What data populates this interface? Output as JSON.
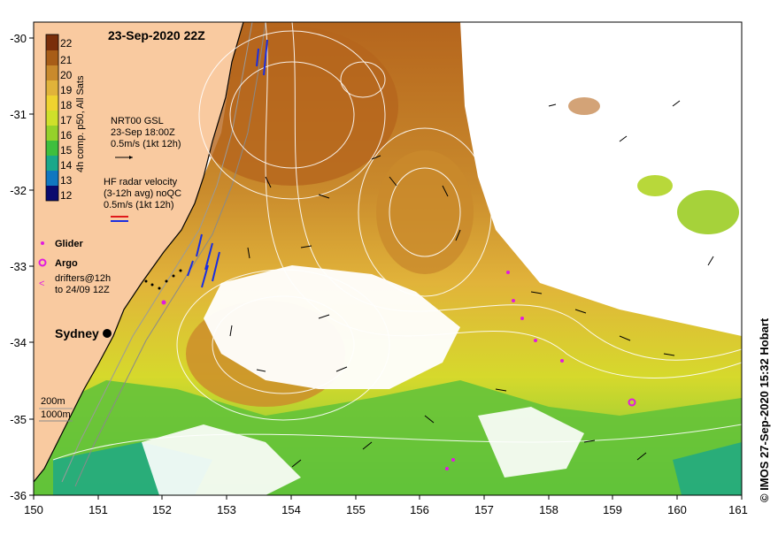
{
  "title": "23-Sep-2020 22Z",
  "credit": "© IMOS 27-Sep-2020 15:32 Hobart",
  "colorbar": {
    "label": "4h comp. p50, All Sats",
    "ticks": [
      "22",
      "21",
      "20",
      "19",
      "18",
      "17",
      "16",
      "15",
      "14",
      "13",
      "12"
    ],
    "colors": [
      "#7a2e0a",
      "#a85d17",
      "#c98a2c",
      "#e1b33a",
      "#efd32f",
      "#cfe02a",
      "#95d12a",
      "#3fbf3e",
      "#1aa88a",
      "#1177c0",
      "#0e3a9a",
      "#0a0a6e"
    ]
  },
  "legend": {
    "gsl_title": "NRT00 GSL",
    "gsl_time": "23-Sep 18:00Z",
    "gsl_scale": "0.5m/s (1kt 12h)",
    "hf_title": "HF radar velocity",
    "hf_sub": "(3-12h avg) noQC",
    "hf_scale": "0.5m/s (1kt 12h)",
    "glider": "Glider",
    "argo": "Argo",
    "drifters_1": "drifters@12h",
    "drifters_2": "to 24/09 12Z",
    "contour_200": "200m",
    "contour_1000": "1000m",
    "city": "Sydney"
  },
  "axes": {
    "x_ticks": [
      "150",
      "151",
      "152",
      "153",
      "154",
      "155",
      "156",
      "157",
      "158",
      "159",
      "160",
      "161"
    ],
    "y_ticks": [
      "-30",
      "-31",
      "-32",
      "-33",
      "-34",
      "-35",
      "-36"
    ],
    "xlim": [
      150,
      161
    ],
    "ylim": [
      -36,
      -30
    ]
  },
  "colors": {
    "land": "#f9caa0",
    "frame": "#000000",
    "glider": "#e01ae0",
    "hf_radar": "#1a2ee0",
    "contour": "#ffffff"
  }
}
